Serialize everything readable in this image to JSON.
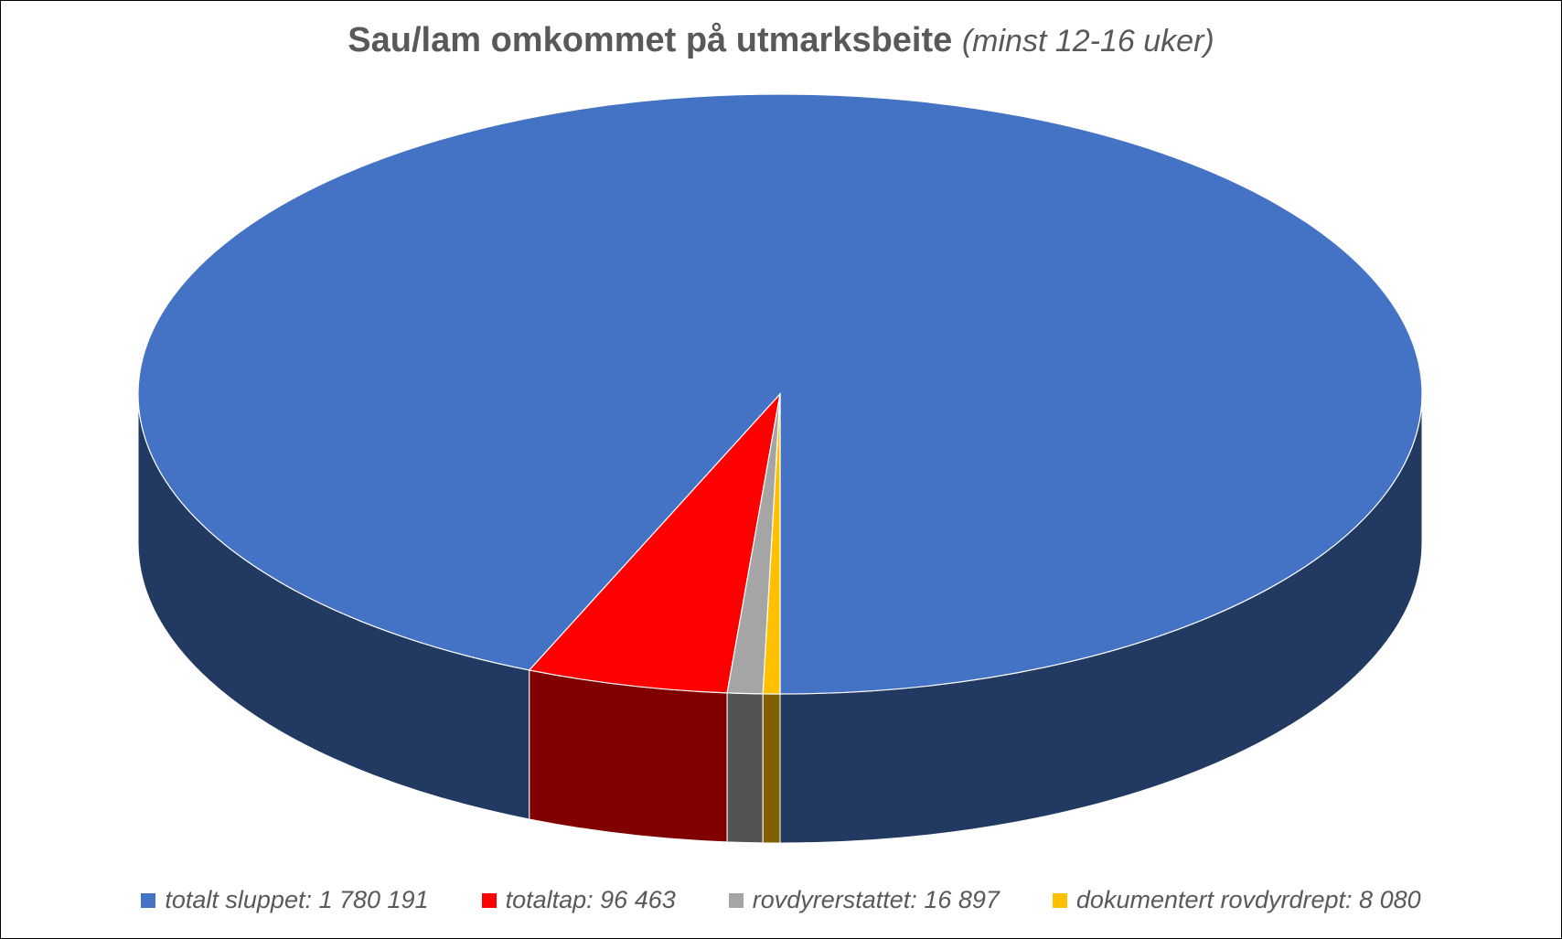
{
  "title": {
    "main": "Sau/lam omkommet på utmarksbeite",
    "sub": "(minst 12-16 uker)"
  },
  "chart_data": {
    "type": "pie",
    "title": "Sau/lam omkommet på utmarksbeite (minst 12-16 uker)",
    "labels": [
      "totalt sluppet",
      "totaltap",
      "rovdyrerstattet",
      "dokumentert rovdyrdrept"
    ],
    "values": [
      1780191,
      96463,
      16897,
      8080
    ],
    "legend_labels": [
      "totalt sluppet: 1 780 191",
      "totaltap: 96 463",
      "rovdyrerstattet: 16 897",
      "dokumentert rovdyrdrept: 8 080"
    ],
    "colors": [
      "#4472C4",
      "#FF0000",
      "#A5A5A5",
      "#FFC000"
    ],
    "legend_position": "bottom",
    "style": "3d"
  }
}
